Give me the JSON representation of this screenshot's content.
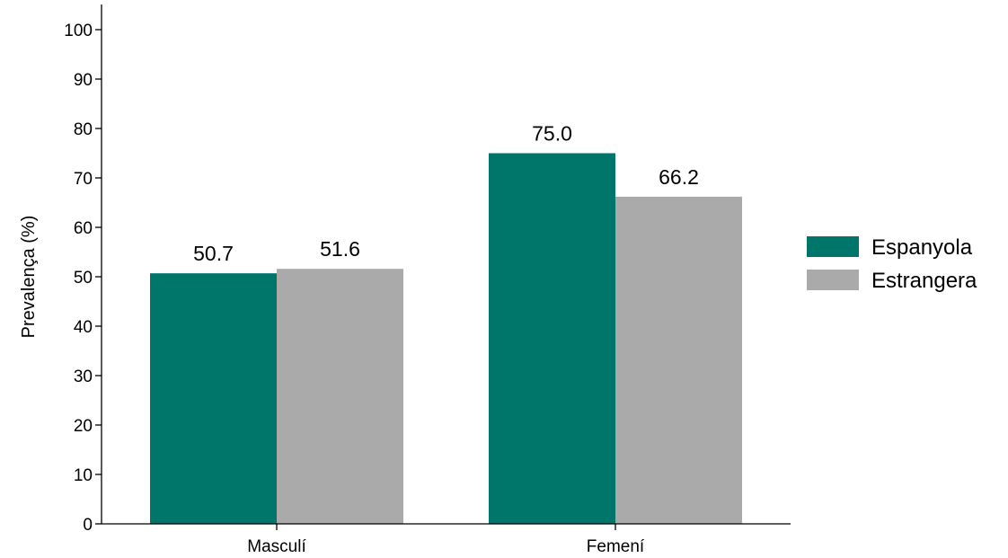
{
  "chart_data": {
    "type": "bar",
    "title": "",
    "xlabel": "",
    "ylabel": "Prevalença (%)",
    "ylim": [
      0,
      100
    ],
    "yticks": [
      0,
      10,
      20,
      30,
      40,
      50,
      60,
      70,
      80,
      90,
      100
    ],
    "categories": [
      "Masculí",
      "Femení"
    ],
    "series": [
      {
        "name": "Espanyola",
        "color": "#00766a",
        "values": [
          50.7,
          75.0
        ],
        "labels": [
          "50.7",
          "75.0"
        ]
      },
      {
        "name": "Estrangera",
        "color": "#aaaaaa",
        "values": [
          51.6,
          66.2
        ],
        "labels": [
          "51.6",
          "66.2"
        ]
      }
    ],
    "grid": false,
    "legend_position": "right"
  }
}
